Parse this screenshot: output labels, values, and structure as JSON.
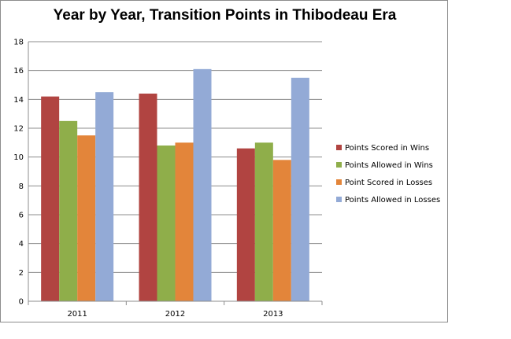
{
  "chart_data": {
    "type": "bar",
    "title": "Year by Year, Transition Points in Thibodeau Era",
    "categories": [
      "2011",
      "2012",
      "2013"
    ],
    "series": [
      {
        "name": "Points Scored in Wins",
        "values": [
          14.2,
          14.4,
          10.6
        ],
        "color": "#b14441"
      },
      {
        "name": "Points Allowed in Wins",
        "values": [
          12.5,
          10.8,
          11.0
        ],
        "color": "#8fae4a"
      },
      {
        "name": "Point Scored in Losses",
        "values": [
          11.5,
          11.0,
          9.8
        ],
        "color": "#e3853a"
      },
      {
        "name": "Points Allowed in Losses",
        "values": [
          14.5,
          16.1,
          15.5
        ],
        "color": "#93aad6"
      }
    ],
    "yticks": [
      0,
      2,
      4,
      6,
      8,
      10,
      12,
      14,
      16,
      18
    ],
    "ylim": [
      0,
      18
    ],
    "grid": true,
    "legend": "right"
  }
}
